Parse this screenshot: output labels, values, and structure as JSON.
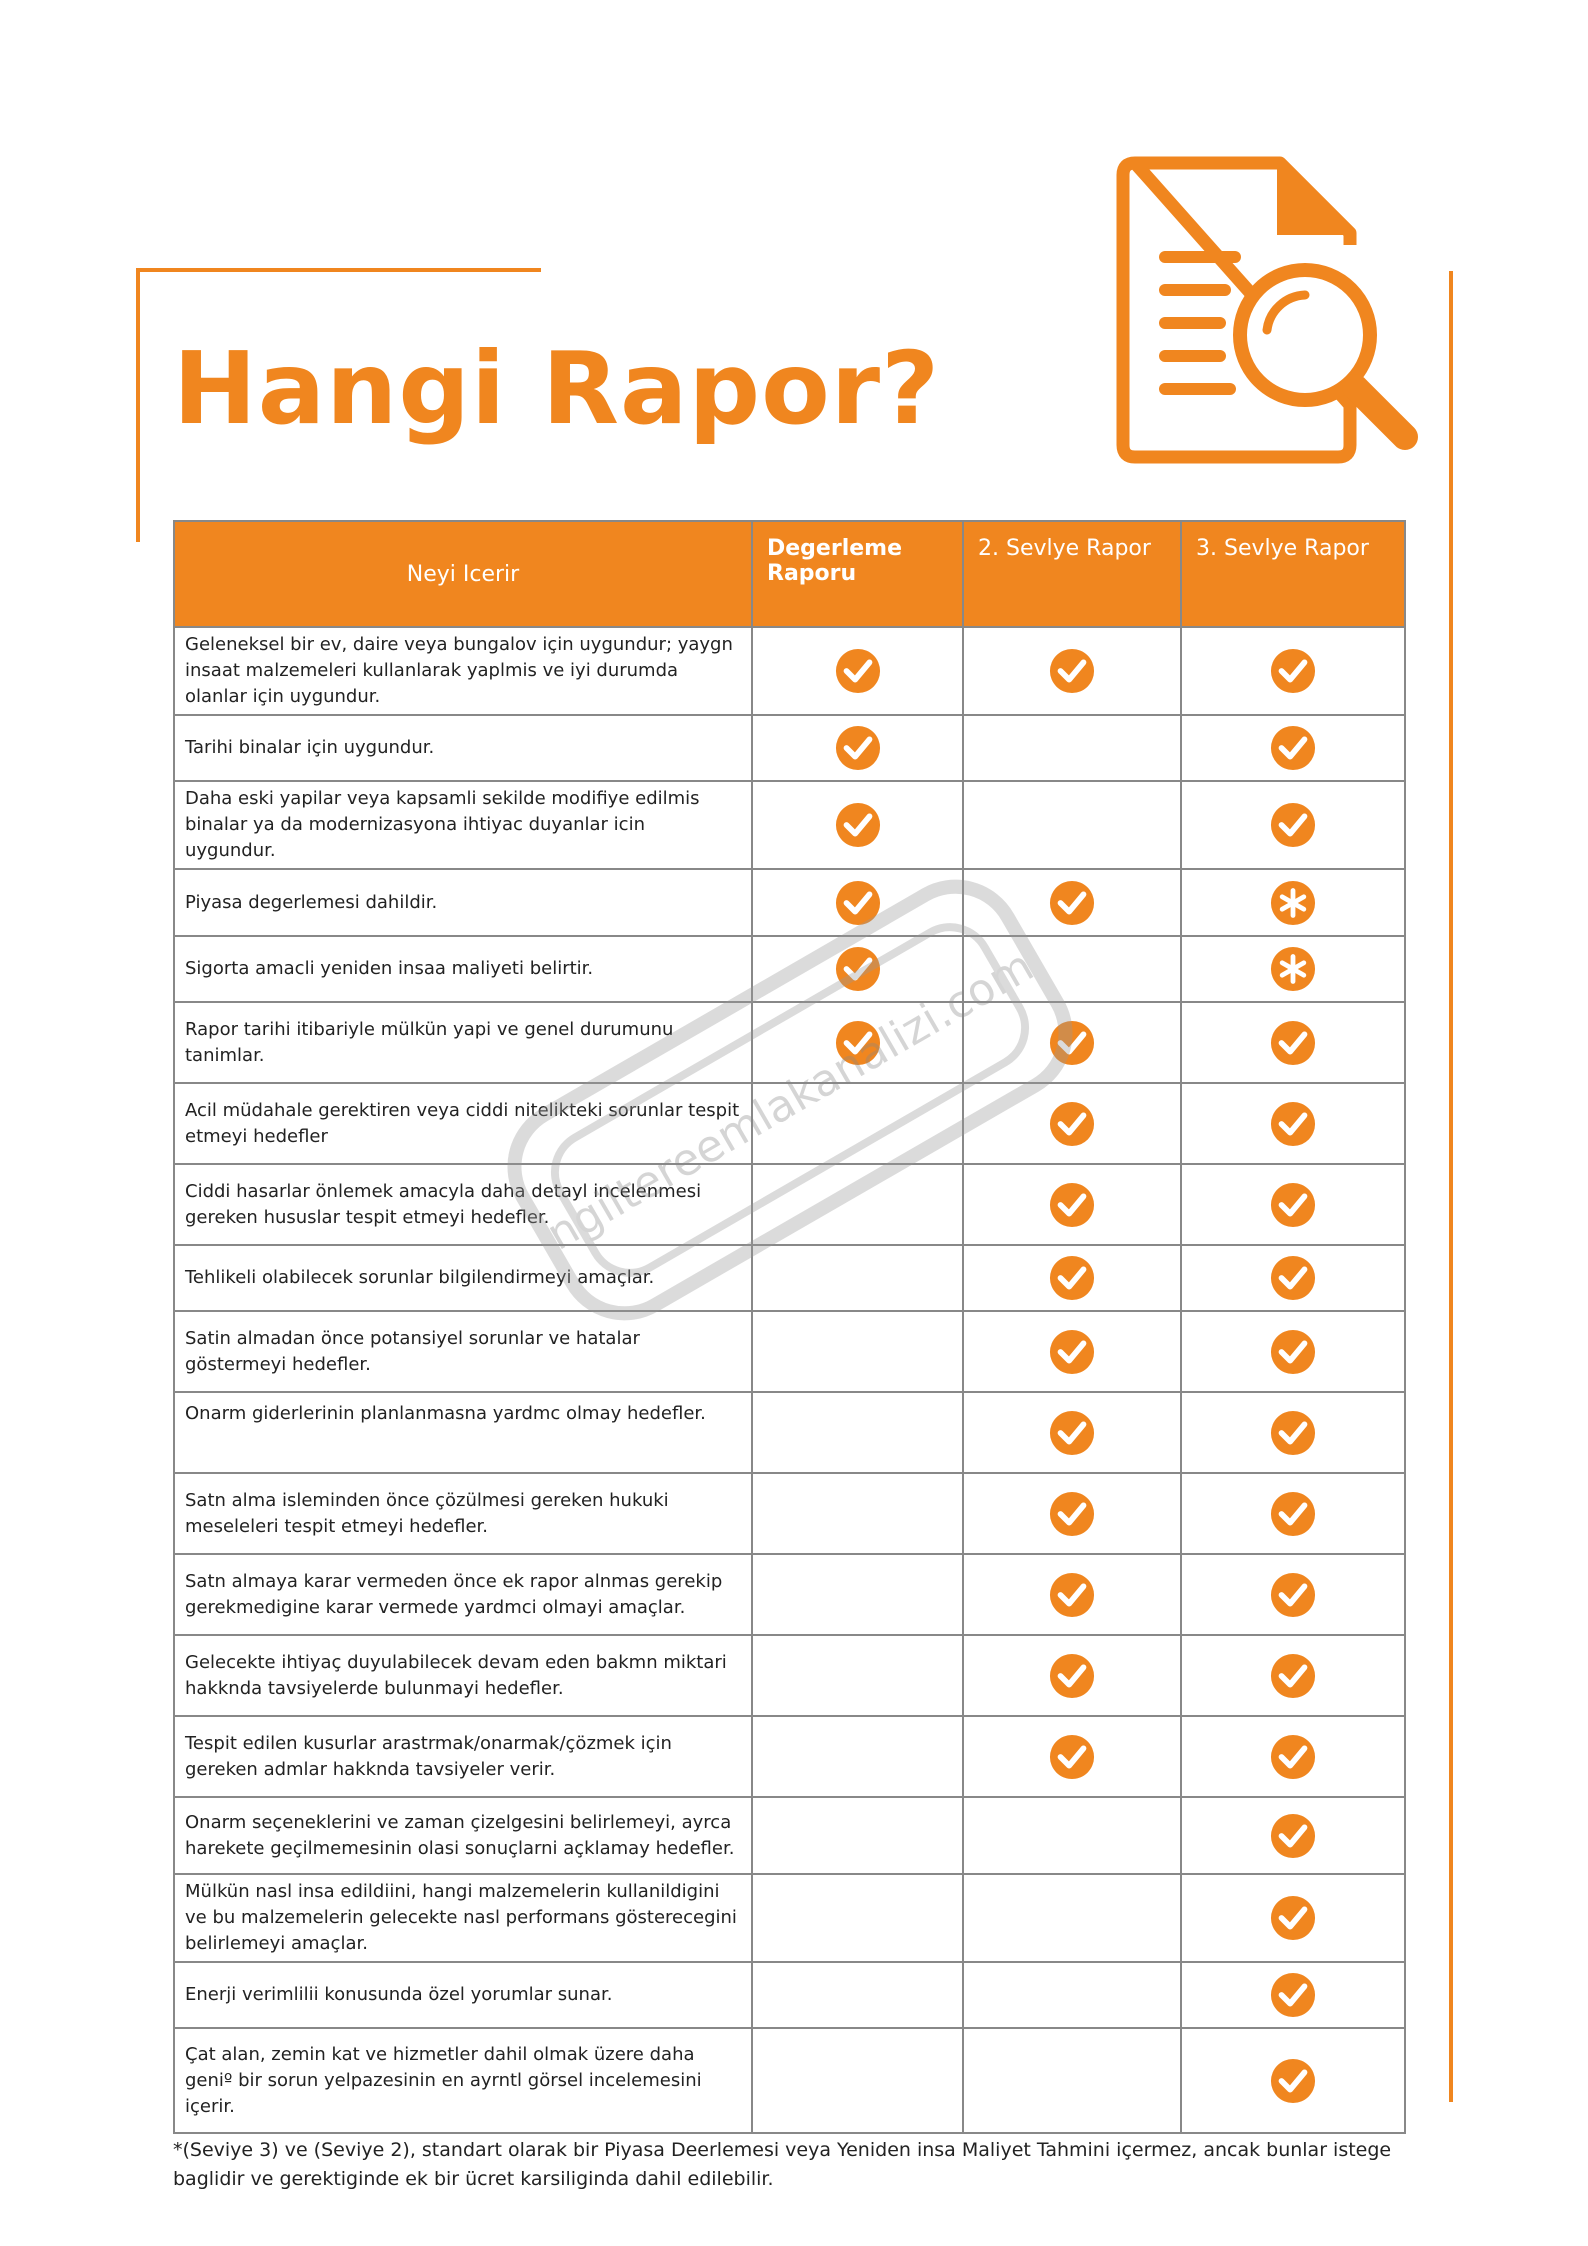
{
  "header": {
    "title": "Hangi Rapor?"
  },
  "table": {
    "headers": [
      "Neyi Icerir",
      "Degerleme Raporu",
      "2. Sevlye Rapor",
      "3. Sevlye Rapor"
    ],
    "rows": [
      "Geleneksel bir ev, daire veya bungalov için uygundur; yaygn insaat malzemeleri kullanlarak yaplmis ve iyi durumda olanlar için uygundur.",
      "Tarihi binalar için uygundur.",
      "Daha eski yapilar veya kapsamli sekilde modifiye edilmis binalar ya da modernizasyona ihtiyac duyanlar icin uygundur.",
      "Piyasa degerlemesi dahildir.",
      "Sigorta amacli yeniden insaa maliyeti belirtir.",
      "Rapor tarihi itibariyle mülkün yapi ve genel durumunu tanimlar.",
      "Acil müdahale gerektiren veya ciddi nitelikteki sorunlar tespit etmeyi hedefler",
      "Ciddi hasarlar önlemek amacyla daha detayl incelenmesi gereken hususlar tespit etmeyi hedefler.",
      "Tehlikeli olabilecek sorunlar bilgilendirmeyi amaçlar.",
      "Satin almadan önce potansiyel sorunlar ve hatalar göstermeyi hedefler.",
      "Onarm giderlerinin planlanmasna yardmc olmay hedefler.",
      "Satn alma isleminden önce çözülmesi gereken hukuki meseleleri tespit etmeyi hedefler.",
      "Satn almaya karar vermeden önce ek rapor alnmas gerekip gerekmedigine karar vermede yardmci olmayi amaçlar.",
      "Gelecekte ihtiyaç duyulabilecek devam eden bakmn miktari hakknda tavsiyelerde bulunmayi hedefler.",
      "Tespit edilen kusurlar arastrmak/onarmak/çözmek için gereken admlar hakknda tavsiyeler verir.",
      "Onarm seçeneklerini ve zaman çizelgesini belirlemeyi, ayrca harekete geçilmemesinin olasi sonuçlarni açklamay hedefler.",
      "Mülkün nasl insa edildiini, hangi malzemelerin kullanildigini ve bu malzemelerin gelecekte nasl performans gösterecegini belirlemeyi amaçlar.",
      "Enerji verimlilii konusunda özel yorumlar sunar.",
      "Çat alan, zemin kat ve hizmetler dahil olmak üzere daha geniº bir sorun yelpazesinin en ayrntl görsel incelemesini içerir."
    ]
  },
  "watermark": "ngiltereemlakanalizi.com",
  "footnote": "*(Seviye 3) ve (Seviye 2), standart olarak bir Piyasa Deerlemesi veya Yeniden insa Maliyet Tahmini içermez, ancak bunlar istege baglidir ve gerektiginde ek bir ücret karsiliginda dahil edilebilir."
}
